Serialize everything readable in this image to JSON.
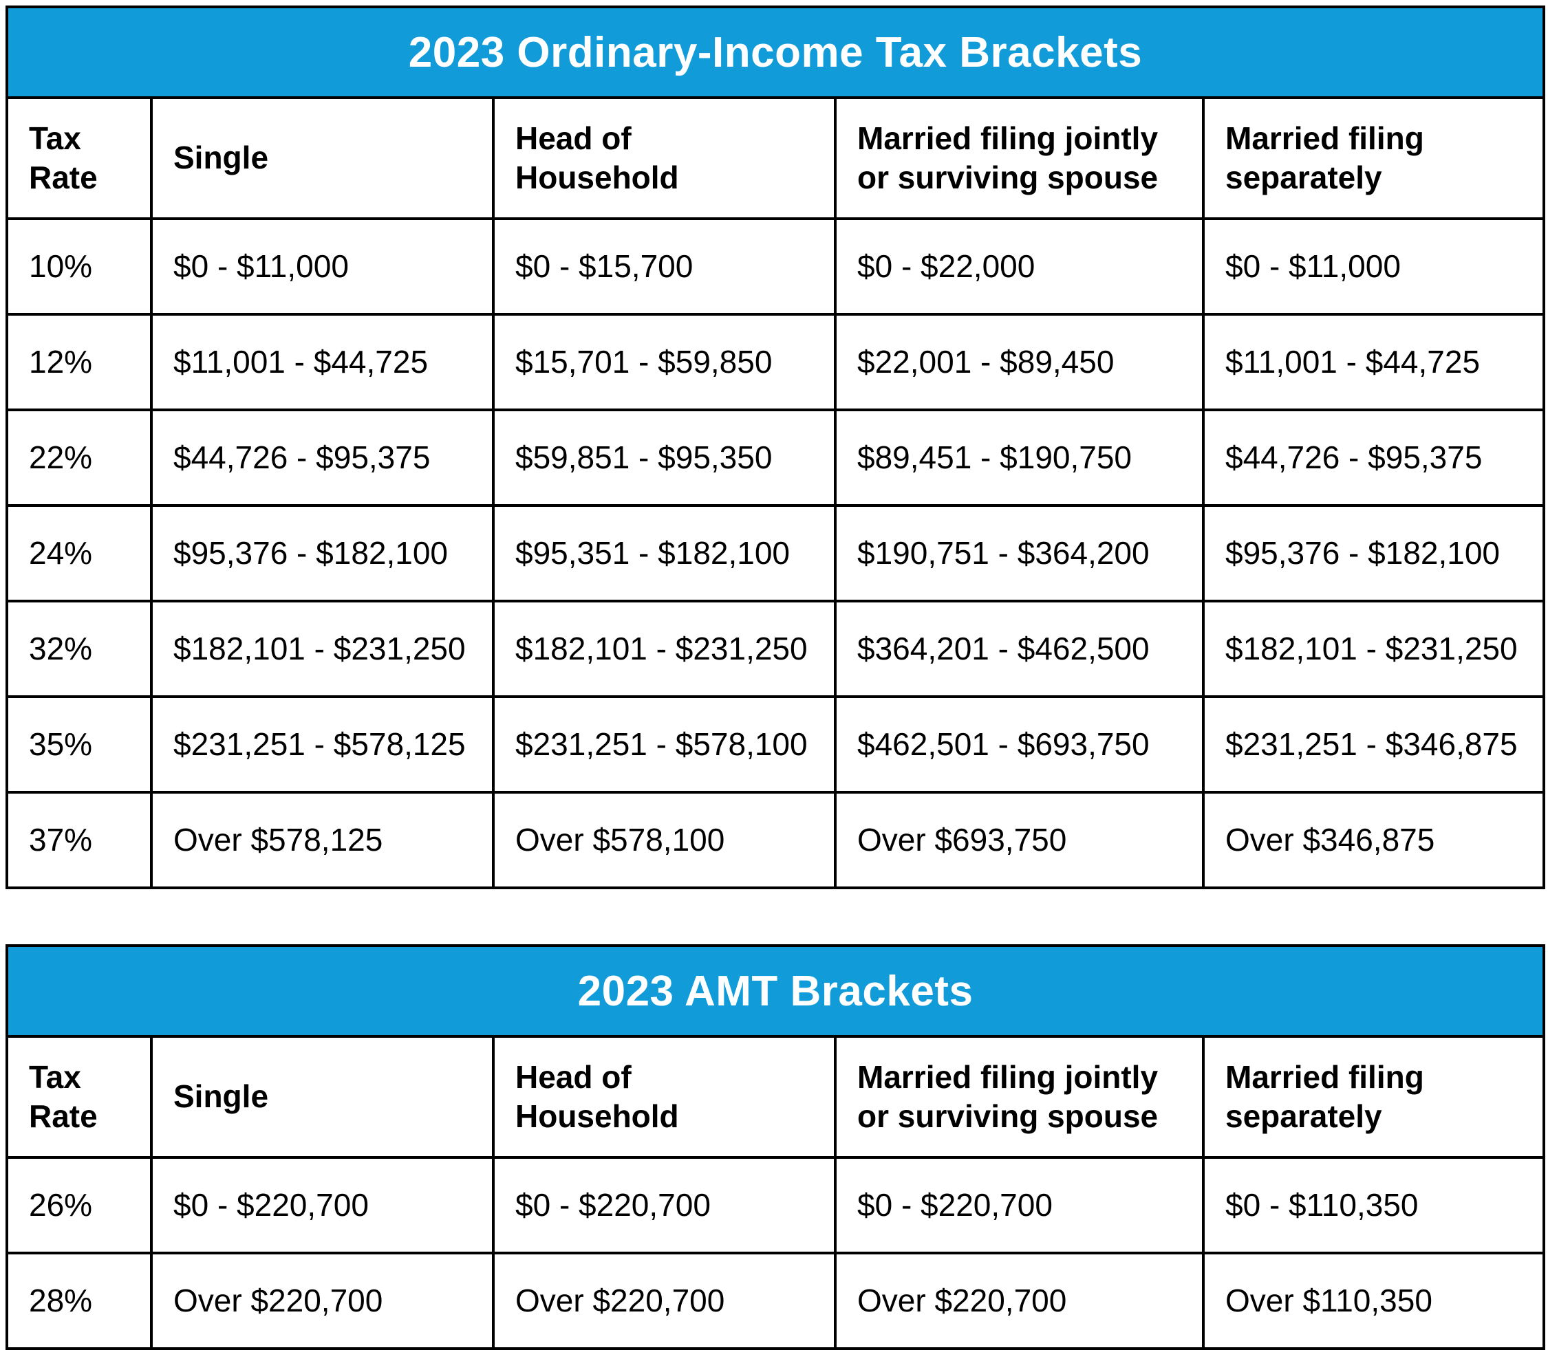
{
  "colors": {
    "accent_blue": "#119CD9",
    "border_black": "#000000",
    "title_text": "#ffffff",
    "body_text": "#000000"
  },
  "tables": [
    {
      "title": "2023 Ordinary-Income Tax Brackets",
      "columns": [
        [
          "Tax",
          "Rate"
        ],
        [
          "Single"
        ],
        [
          "Head of",
          "Household"
        ],
        [
          "Married filing jointly",
          "or surviving spouse"
        ],
        [
          "Married filing",
          "separately"
        ]
      ],
      "rows": [
        [
          "10%",
          "$0 - $11,000",
          "$0 - $15,700",
          "$0 - $22,000",
          "$0 - $11,000"
        ],
        [
          "12%",
          "$11,001 - $44,725",
          "$15,701 - $59,850",
          "$22,001 - $89,450",
          "$11,001 - $44,725"
        ],
        [
          "22%",
          "$44,726 - $95,375",
          "$59,851 - $95,350",
          "$89,451 - $190,750",
          "$44,726 - $95,375"
        ],
        [
          "24%",
          "$95,376 - $182,100",
          "$95,351 - $182,100",
          "$190,751 - $364,200",
          "$95,376 - $182,100"
        ],
        [
          "32%",
          "$182,101 - $231,250",
          "$182,101 - $231,250",
          "$364,201 - $462,500",
          "$182,101 - $231,250"
        ],
        [
          "35%",
          "$231,251 - $578,125",
          "$231,251 - $578,100",
          "$462,501 - $693,750",
          "$231,251 - $346,875"
        ],
        [
          "37%",
          "Over $578,125",
          "Over $578,100",
          "Over $693,750",
          "Over $346,875"
        ]
      ]
    },
    {
      "title": "2023 AMT Brackets",
      "columns": [
        [
          "Tax",
          "Rate"
        ],
        [
          "Single"
        ],
        [
          "Head of",
          "Household"
        ],
        [
          "Married filing jointly",
          "or surviving spouse"
        ],
        [
          "Married filing",
          "separately"
        ]
      ],
      "rows": [
        [
          "26%",
          "$0 - $220,700",
          "$0 - $220,700",
          "$0 - $220,700",
          "$0 - $110,350"
        ],
        [
          "28%",
          "Over $220,700",
          "Over $220,700",
          "Over $220,700",
          "Over $110,350"
        ]
      ]
    }
  ]
}
